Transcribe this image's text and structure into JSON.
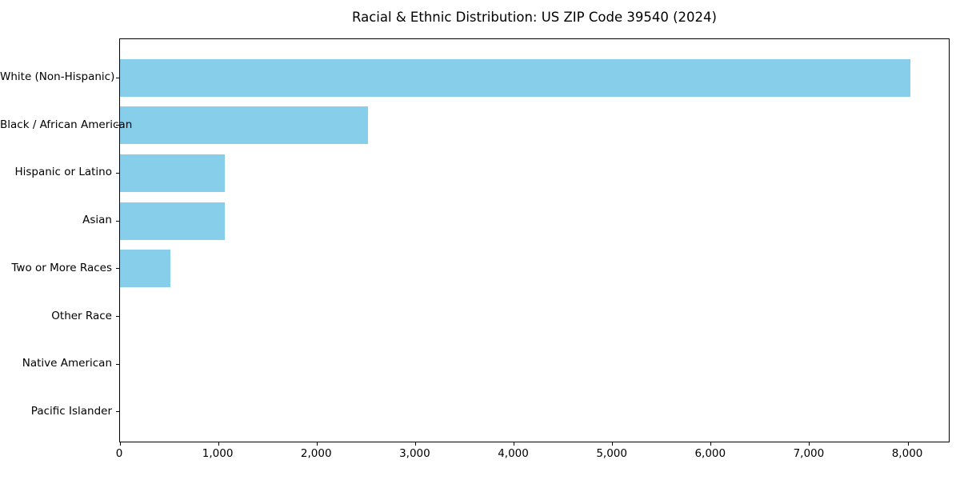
{
  "chart_data": {
    "type": "bar",
    "orientation": "horizontal",
    "title": "Racial & Ethnic Distribution: US ZIP Code 39540 (2024)",
    "categories": [
      "White (Non-Hispanic)",
      "Black / African American",
      "Hispanic or Latino",
      "Asian",
      "Two or More Races",
      "Other Race",
      "Native American",
      "Pacific Islander"
    ],
    "values": [
      8025,
      2520,
      1060,
      1060,
      510,
      0,
      0,
      0
    ],
    "xlabel": "",
    "ylabel": "",
    "xlim": [
      0,
      8430
    ],
    "x_ticks": [
      0,
      1000,
      2000,
      3000,
      4000,
      5000,
      6000,
      7000,
      8000
    ],
    "x_tick_labels": [
      "0",
      "1,000",
      "2,000",
      "3,000",
      "4,000",
      "5,000",
      "6,000",
      "7,000",
      "8,000"
    ],
    "bar_color": "#87CEEB",
    "axis_color": "#000000",
    "background_color": "#ffffff",
    "grid": false,
    "legend": false
  }
}
